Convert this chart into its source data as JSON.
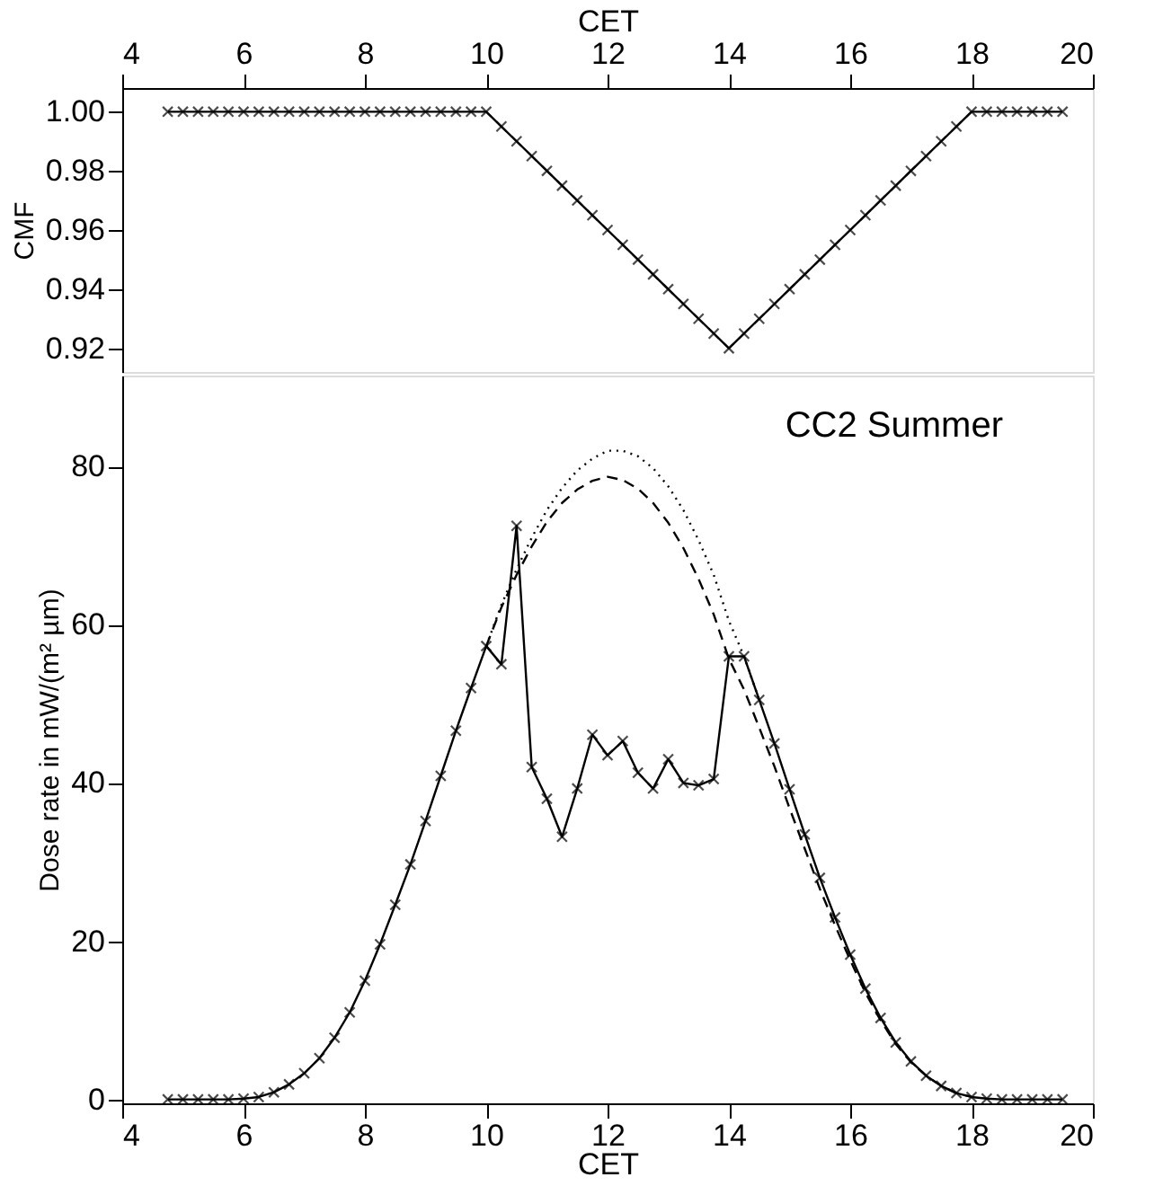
{
  "chart_data": [
    {
      "type": "line",
      "ylabel": "CMF",
      "xlabel": "CET",
      "xlim": [
        4,
        20
      ],
      "xticks": [
        4,
        6,
        8,
        10,
        12,
        14,
        16,
        18,
        20
      ],
      "ylim": [
        0.912,
        1.008
      ],
      "yticks": [
        {
          "value": 0.92,
          "label": "0.92"
        },
        {
          "value": 0.94,
          "label": "0.94"
        },
        {
          "value": 0.96,
          "label": "0.96"
        },
        {
          "value": 0.98,
          "label": "0.98"
        },
        {
          "value": 1,
          "label": "1.00"
        }
      ],
      "series": [
        {
          "color": "#000000",
          "marker": "cross",
          "line_style": "solid",
          "x": [
            4.75,
            5,
            5.25,
            5.5,
            5.75,
            6,
            6.25,
            6.5,
            6.75,
            7,
            7.25,
            7.5,
            7.75,
            8,
            8.25,
            8.5,
            8.75,
            9,
            9.25,
            9.5,
            9.75,
            10,
            10.25,
            10.5,
            10.75,
            11,
            11.25,
            11.5,
            11.75,
            12,
            12.25,
            12.5,
            12.75,
            13,
            13.25,
            13.5,
            13.75,
            14,
            14.25,
            14.5,
            14.75,
            15,
            15.25,
            15.5,
            15.75,
            16,
            16.25,
            16.5,
            16.75,
            17,
            17.25,
            17.5,
            17.75,
            18,
            18.25,
            18.5,
            18.75,
            19,
            19.25,
            19.5
          ],
          "values": [
            1,
            1,
            1,
            1,
            1,
            1,
            1,
            1,
            1,
            1,
            1,
            1,
            1,
            1,
            1,
            1,
            1,
            1,
            1,
            1,
            1,
            1,
            0.995,
            0.99,
            0.985,
            0.98,
            0.975,
            0.97,
            0.965,
            0.96,
            0.955,
            0.95,
            0.945,
            0.94,
            0.935,
            0.93,
            0.925,
            0.92,
            0.925,
            0.93,
            0.935,
            0.94,
            0.945,
            0.95,
            0.955,
            0.96,
            0.965,
            0.97,
            0.975,
            0.98,
            0.985,
            0.99,
            0.995,
            1,
            1,
            1,
            1,
            1,
            1,
            1
          ]
        }
      ]
    },
    {
      "type": "line",
      "xlabel": "CET",
      "ylabel": "Dose rate in mW/(m² µm)",
      "xlim": [
        4,
        20
      ],
      "xticks": [
        4,
        6,
        8,
        10,
        12,
        14,
        16,
        18,
        20
      ],
      "ylim": [
        -0.5,
        91.5
      ],
      "yticks": [
        0,
        20,
        40,
        60,
        80
      ],
      "annotations": [
        "CC2 Summer"
      ],
      "series": [
        {
          "color": "#000000",
          "marker": "none",
          "line_style": "dotted",
          "x": [
            10,
            10.25,
            10.5,
            10.75,
            11,
            11.25,
            11.5,
            11.75,
            12,
            12.25,
            12.5,
            12.75,
            13,
            13.25,
            13.5,
            13.75,
            14,
            14.25,
            14.5
          ],
          "values": [
            57.3,
            62.5,
            67,
            71,
            74.5,
            77.3,
            79.5,
            81,
            82,
            82,
            81.3,
            79.8,
            77.5,
            74.5,
            70.7,
            66.3,
            60.5,
            56,
            50.5
          ]
        },
        {
          "color": "#000000",
          "marker": "none",
          "line_style": "dashed",
          "x": [
            10,
            10.25,
            10.5,
            10.75,
            11,
            11.25,
            11.5,
            11.75,
            12,
            12.25,
            12.5,
            12.75,
            13,
            13.25,
            13.5,
            13.75,
            14,
            14.25,
            14.5,
            14.75,
            15,
            15.25,
            15.5,
            15.75,
            16,
            16.25,
            16.5,
            16.75,
            17,
            17.25,
            17.5,
            17.75,
            18
          ],
          "values": [
            57.3,
            62.2,
            66.3,
            69.9,
            73.0,
            75.4,
            77.1,
            78.2,
            78.7,
            78.3,
            77.2,
            75.4,
            72.9,
            69.7,
            65.8,
            61.3,
            55.7,
            51.8,
            47.0,
            42.1,
            36.8,
            31.7,
            26.6,
            22.0,
            17.6,
            13.5,
            10.0,
            7.0,
            4.7,
            3.0,
            1.7,
            0.8,
            0.3
          ]
        },
        {
          "color": "#000000",
          "marker": "cross",
          "line_style": "solid",
          "x": [
            4.75,
            5,
            5.25,
            5.5,
            5.75,
            6,
            6.25,
            6.5,
            6.75,
            7,
            7.25,
            7.5,
            7.75,
            8,
            8.25,
            8.5,
            8.75,
            9,
            9.25,
            9.5,
            9.75,
            10,
            10.25,
            10.5,
            10.75,
            11,
            11.25,
            11.5,
            11.75,
            12,
            12.25,
            12.5,
            12.75,
            13,
            13.25,
            13.5,
            13.75,
            14,
            14.25,
            14.5,
            14.75,
            15,
            15.25,
            15.5,
            15.75,
            16,
            16.25,
            16.5,
            16.75,
            17,
            17.25,
            17.5,
            17.75,
            18,
            18.25,
            18.5,
            18.75,
            19,
            19.25,
            19.5
          ],
          "values": [
            0,
            0,
            0,
            0,
            0,
            0.1,
            0.3,
            0.9,
            1.9,
            3.3,
            5.2,
            7.8,
            11,
            15,
            19.6,
            24.6,
            29.7,
            35.2,
            40.9,
            46.6,
            52,
            57.3,
            55,
            72.5,
            42,
            38,
            33.2,
            39.3,
            46.1,
            43.5,
            45.3,
            41.3,
            39.3,
            43,
            40,
            39.7,
            40.5,
            56,
            56,
            50.5,
            45,
            39.2,
            33.5,
            28,
            23,
            18.3,
            14,
            10.3,
            7.2,
            4.8,
            3,
            1.7,
            0.8,
            0.3,
            0.1,
            0,
            0,
            0,
            0,
            0
          ]
        }
      ]
    }
  ]
}
